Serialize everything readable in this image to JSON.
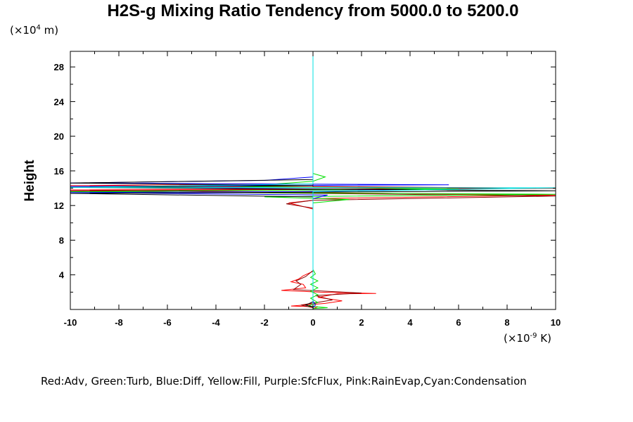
{
  "chart_data": {
    "type": "line",
    "title": "H2S-g Mixing Ratio Tendency from 5000.0 to 5200.0",
    "ylabel": "Height",
    "y_units": {
      "prefix": "(×10",
      "exp": "4",
      "suffix": " m)"
    },
    "x_units": {
      "prefix": "(×10",
      "exp": "-9",
      "suffix": " K)"
    },
    "xlim": [
      -10,
      10
    ],
    "ylim": [
      0,
      29.8
    ],
    "x_ticks": [
      -10,
      -8,
      -6,
      -4,
      -2,
      0,
      2,
      4,
      6,
      8,
      10
    ],
    "y_ticks": [
      4,
      8,
      12,
      16,
      20,
      24,
      28
    ],
    "legend_text": "Red:Adv, Green:Turb, Blue:Diff, Yellow:Fill, Purple:SfcFlux, Pink:RainEvap,Cyan:Condensation",
    "series": [
      {
        "color": "#ff0000",
        "points": [
          [
            0,
            0.1
          ],
          [
            0.2,
            0.3
          ],
          [
            -0.9,
            0.4
          ],
          [
            0.5,
            0.7
          ],
          [
            1.2,
            1.0
          ],
          [
            0.2,
            1.4
          ],
          [
            0.6,
            1.6
          ],
          [
            1.0,
            1.8
          ],
          [
            2.6,
            1.85
          ],
          [
            0.3,
            2.0
          ],
          [
            -1.3,
            2.2
          ],
          [
            -0.3,
            2.5
          ],
          [
            -0.4,
            2.9
          ],
          [
            -0.9,
            3.2
          ],
          [
            -0.6,
            3.5
          ],
          [
            -0.4,
            3.9
          ],
          [
            0,
            4.4
          ],
          [
            0,
            4.8
          ],
          [
            0,
            6.5
          ],
          [
            0,
            11.6
          ],
          [
            -1.0,
            12.3
          ],
          [
            0,
            12.6
          ],
          [
            0,
            12.8
          ],
          [
            10,
            13.2
          ],
          [
            -10,
            13.8
          ],
          [
            0,
            13.9
          ],
          [
            10,
            14.0
          ],
          [
            -10,
            14.3
          ],
          [
            0,
            14.5
          ],
          [
            0,
            15.2
          ],
          [
            0,
            29.8
          ]
        ]
      },
      {
        "color": "#8b0000",
        "points": [
          [
            0,
            0.2
          ],
          [
            -0.5,
            0.5
          ],
          [
            0.8,
            1.1
          ],
          [
            0.1,
            1.6
          ],
          [
            2.0,
            1.9
          ],
          [
            -0.8,
            2.3
          ],
          [
            -0.5,
            2.9
          ],
          [
            -0.7,
            3.3
          ],
          [
            -0.3,
            3.8
          ],
          [
            0,
            4.5
          ],
          [
            0,
            11.7
          ],
          [
            -1.1,
            12.2
          ],
          [
            0,
            12.6
          ],
          [
            10,
            13.1
          ],
          [
            -10,
            13.7
          ],
          [
            10,
            14.0
          ],
          [
            0,
            14.2
          ],
          [
            0,
            29.8
          ]
        ]
      },
      {
        "color": "#00e000",
        "points": [
          [
            0,
            0.1
          ],
          [
            0.6,
            0.2
          ],
          [
            -0.2,
            0.4
          ],
          [
            0.2,
            0.8
          ],
          [
            -0.1,
            1.3
          ],
          [
            0.2,
            1.7
          ],
          [
            -0.1,
            2.1
          ],
          [
            0.2,
            2.5
          ],
          [
            -0.1,
            2.9
          ],
          [
            0.2,
            3.3
          ],
          [
            -0.1,
            3.7
          ],
          [
            0.1,
            4.1
          ],
          [
            0,
            4.6
          ],
          [
            0,
            12.3
          ],
          [
            1.5,
            12.7
          ],
          [
            -2.0,
            13.0
          ],
          [
            10,
            13.3
          ],
          [
            -10,
            13.6
          ],
          [
            6,
            13.9
          ],
          [
            -3,
            14.2
          ],
          [
            -1.0,
            14.6
          ],
          [
            0,
            14.8
          ],
          [
            0.5,
            15.3
          ],
          [
            0,
            15.7
          ],
          [
            0,
            29.8
          ]
        ]
      },
      {
        "color": "#0000ff",
        "points": [
          [
            0,
            0.2
          ],
          [
            0.1,
            0.5
          ],
          [
            0,
            1.0
          ],
          [
            0,
            12.8
          ],
          [
            0.6,
            13.2
          ],
          [
            -10,
            13.5
          ],
          [
            -0.8,
            13.6
          ],
          [
            4.0,
            13.8
          ],
          [
            -10,
            14.2
          ],
          [
            5.6,
            14.4
          ],
          [
            -10,
            14.6
          ],
          [
            -2.0,
            14.9
          ],
          [
            0,
            15.3
          ],
          [
            0,
            29.8
          ]
        ]
      },
      {
        "color": "#000000",
        "points": [
          [
            0,
            0.3
          ],
          [
            -0.3,
            0.5
          ],
          [
            0,
            0.9
          ],
          [
            0,
            13.0
          ],
          [
            -10,
            13.4
          ],
          [
            10,
            13.7
          ],
          [
            -10,
            14.1
          ],
          [
            0,
            14.3
          ],
          [
            -10,
            14.6
          ],
          [
            0,
            15.0
          ],
          [
            0,
            15.6
          ],
          [
            0,
            29.8
          ]
        ]
      },
      {
        "color": "#00e0e0",
        "points": [
          [
            0,
            0
          ],
          [
            0,
            13.6
          ],
          [
            10,
            14.05
          ],
          [
            -10,
            14.1
          ],
          [
            0,
            14.5
          ],
          [
            0,
            15.5
          ],
          [
            0,
            29.8
          ]
        ]
      }
    ]
  }
}
